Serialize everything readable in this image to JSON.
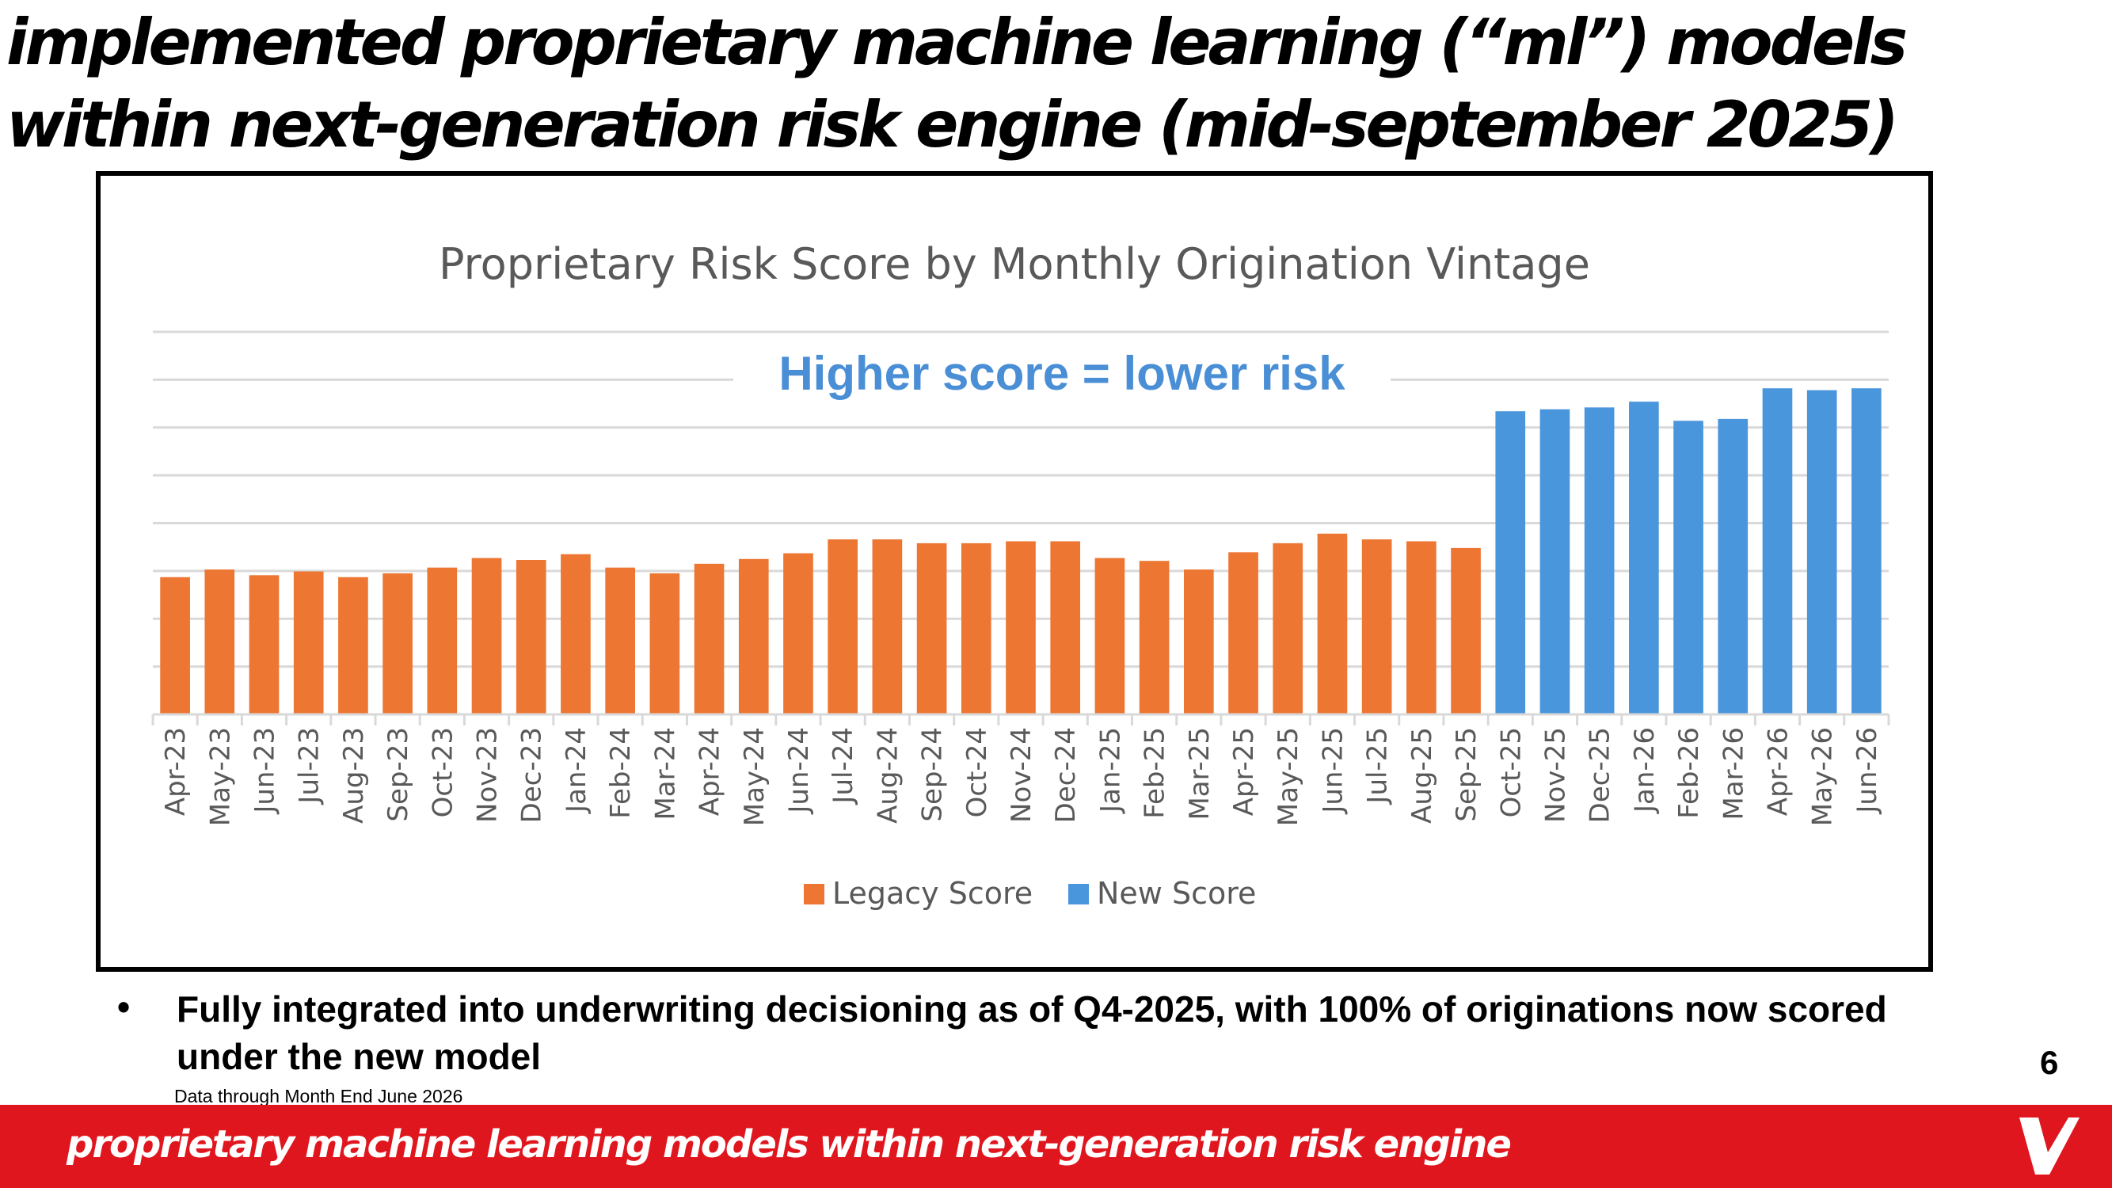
{
  "slide": {
    "title_line1": "implemented proprietary machine learning (“ml”) models",
    "title_line2": "within next-generation risk engine (mid-september 2025)",
    "bullet_marker": "•",
    "bullet_text": "Fully integrated into underwriting decisioning as of Q4-2025, with 100% of originations now scored under the new model",
    "footnote": "Data through Month End June 2026",
    "page_number": "6",
    "footer_text": "proprietary machine learning models within next-generation risk engine",
    "colors": {
      "brand_red": "#e0161e",
      "legacy": "#ed7632",
      "new": "#4a96dc",
      "annotation": "#4a8fd6"
    }
  },
  "chart_data": {
    "type": "bar",
    "title": "Proprietary Risk Score by Monthly Origination Vintage",
    "annotation": "Higher score = lower risk",
    "xlabel": "",
    "ylabel": "",
    "y_tick_labels_visible": false,
    "grid": true,
    "legend_position": "bottom",
    "ylim": [
      0,
      8
    ],
    "categories": [
      "Apr-23",
      "May-23",
      "Jun-23",
      "Jul-23",
      "Aug-23",
      "Sep-23",
      "Oct-23",
      "Nov-23",
      "Dec-23",
      "Jan-24",
      "Feb-24",
      "Mar-24",
      "Apr-24",
      "May-24",
      "Jun-24",
      "Jul-24",
      "Aug-24",
      "Sep-24",
      "Oct-24",
      "Nov-24",
      "Dec-24",
      "Jan-25",
      "Feb-25",
      "Mar-25",
      "Apr-25",
      "May-25",
      "Jun-25",
      "Jul-25",
      "Aug-25",
      "Sep-25",
      "Oct-25",
      "Nov-25",
      "Dec-25",
      "Jan-26",
      "Feb-26",
      "Mar-26",
      "Apr-26",
      "May-26",
      "Jun-26"
    ],
    "series": [
      {
        "name": "Legacy Score",
        "color": "#ed7632",
        "values": [
          2.87,
          3.03,
          2.91,
          2.99,
          2.87,
          2.95,
          3.07,
          3.27,
          3.23,
          3.35,
          3.07,
          2.95,
          3.15,
          3.25,
          3.37,
          3.66,
          3.66,
          3.58,
          3.58,
          3.62,
          3.62,
          3.27,
          3.21,
          3.03,
          3.39,
          3.58,
          3.78,
          3.66,
          3.62,
          3.48,
          null,
          null,
          null,
          null,
          null,
          null,
          null,
          null,
          null
        ]
      },
      {
        "name": "New Score",
        "color": "#4a96dc",
        "values": [
          null,
          null,
          null,
          null,
          null,
          null,
          null,
          null,
          null,
          null,
          null,
          null,
          null,
          null,
          null,
          null,
          null,
          null,
          null,
          null,
          null,
          null,
          null,
          null,
          null,
          null,
          null,
          null,
          null,
          null,
          6.34,
          6.38,
          6.42,
          6.54,
          6.14,
          6.18,
          6.82,
          6.78,
          6.82
        ]
      }
    ]
  }
}
